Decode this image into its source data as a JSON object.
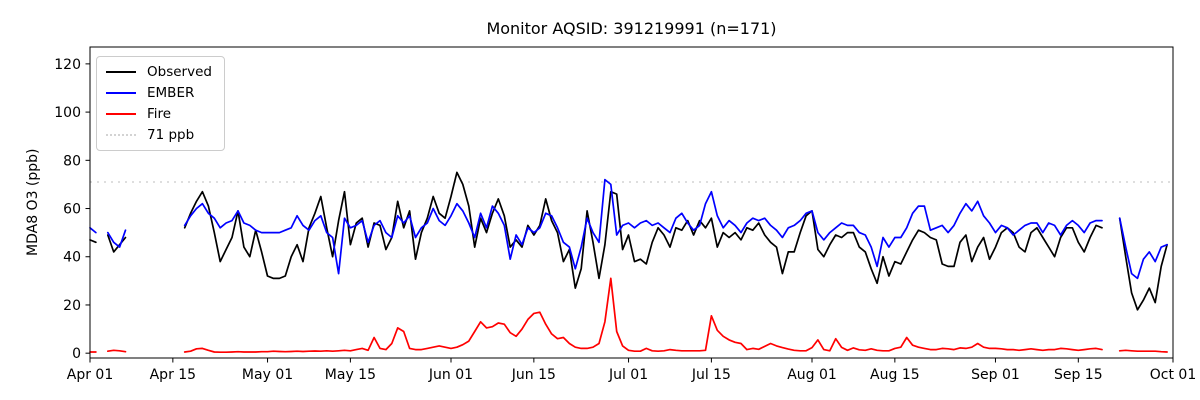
{
  "chart_data": {
    "type": "line",
    "title": "Monitor AQSID: 391219991 (n=171)",
    "xlabel": "",
    "ylabel": "MDA8 O3 (ppb)",
    "x_unit": "days since Apr 01",
    "xlim": [
      0,
      183
    ],
    "ylim": [
      -2,
      127
    ],
    "grid": false,
    "background": "#ffffff",
    "frame_color": "#000000",
    "threshold": {
      "value": 71,
      "label": "71 ppb",
      "color": "#d3d3d3",
      "style": "dotted"
    },
    "x_ticks": [
      {
        "day": 0,
        "label": "Apr 01"
      },
      {
        "day": 14,
        "label": "Apr 15"
      },
      {
        "day": 30,
        "label": "May 01"
      },
      {
        "day": 44,
        "label": "May 15"
      },
      {
        "day": 61,
        "label": "Jun 01"
      },
      {
        "day": 75,
        "label": "Jun 15"
      },
      {
        "day": 91,
        "label": "Jul 01"
      },
      {
        "day": 105,
        "label": "Jul 15"
      },
      {
        "day": 122,
        "label": "Aug 01"
      },
      {
        "day": 136,
        "label": "Aug 15"
      },
      {
        "day": 153,
        "label": "Sep 01"
      },
      {
        "day": 167,
        "label": "Sep 15"
      },
      {
        "day": 183,
        "label": "Oct 01"
      }
    ],
    "y_ticks": [
      0,
      20,
      40,
      60,
      80,
      100,
      120
    ],
    "legend": {
      "position": "upper-left",
      "entries": [
        {
          "label": "Observed",
          "color": "#000000",
          "style": "solid"
        },
        {
          "label": "EMBER",
          "color": "#0000ff",
          "style": "solid"
        },
        {
          "label": "Fire",
          "color": "#ff0000",
          "style": "solid"
        },
        {
          "label": "71 ppb",
          "color": "#d3d3d3",
          "style": "dotted"
        }
      ]
    },
    "series": [
      {
        "id": "observed",
        "name": "Observed",
        "color": "#000000",
        "values": [
          47,
          46,
          null,
          49,
          42,
          45,
          48,
          null,
          null,
          null,
          null,
          null,
          null,
          null,
          null,
          null,
          52,
          58,
          63,
          67,
          61,
          50,
          38,
          43,
          48,
          59,
          44,
          40,
          51,
          42,
          32,
          31,
          31,
          32,
          40,
          45,
          38,
          52,
          58,
          65,
          52,
          40,
          55,
          67,
          45,
          54,
          56,
          44,
          54,
          53,
          43,
          48,
          63,
          52,
          59,
          39,
          50,
          56,
          65,
          58,
          56,
          65,
          75,
          70,
          61,
          44,
          56,
          50,
          58,
          64,
          57,
          44,
          47,
          44,
          53,
          49,
          53,
          64,
          55,
          50,
          38,
          43,
          27,
          35,
          59,
          46,
          31,
          45,
          67,
          66,
          43,
          49,
          38,
          39,
          37,
          46,
          52,
          49,
          44,
          52,
          51,
          55,
          49,
          55,
          52,
          56,
          44,
          50,
          48,
          50,
          47,
          52,
          51,
          54,
          49,
          46,
          44,
          33,
          42,
          42,
          50,
          57,
          59,
          43,
          40,
          45,
          49,
          48,
          50,
          50,
          44,
          42,
          35,
          29,
          40,
          32,
          38,
          37,
          42,
          47,
          51,
          50,
          48,
          47,
          37,
          36,
          36,
          46,
          49,
          38,
          44,
          48,
          39,
          44,
          50,
          52,
          50,
          44,
          42,
          50,
          52,
          48,
          44,
          40,
          48,
          52,
          52,
          46,
          42,
          48,
          53,
          52,
          null,
          null,
          56,
          40,
          25,
          18,
          22,
          27,
          21,
          36,
          45
        ]
      },
      {
        "id": "ember",
        "name": "EMBER",
        "color": "#0000ff",
        "values": [
          52,
          50,
          null,
          50,
          46,
          44,
          51,
          null,
          null,
          null,
          null,
          null,
          null,
          null,
          null,
          null,
          53,
          57,
          60,
          62,
          58,
          56,
          52,
          54,
          55,
          59,
          54,
          53,
          51,
          50,
          50,
          50,
          50,
          51,
          52,
          57,
          53,
          51,
          55,
          57,
          50,
          48,
          33,
          56,
          52,
          53,
          55,
          46,
          53,
          55,
          50,
          48,
          57,
          54,
          57,
          48,
          52,
          54,
          60,
          55,
          53,
          57,
          62,
          59,
          54,
          48,
          58,
          52,
          61,
          58,
          53,
          39,
          49,
          45,
          52,
          50,
          52,
          58,
          57,
          52,
          46,
          44,
          35,
          44,
          56,
          50,
          46,
          72,
          70,
          49,
          53,
          54,
          52,
          54,
          55,
          53,
          54,
          52,
          50,
          56,
          58,
          54,
          51,
          53,
          62,
          67,
          57,
          52,
          55,
          53,
          50,
          54,
          56,
          55,
          56,
          53,
          51,
          48,
          52,
          53,
          55,
          58,
          59,
          50,
          47,
          50,
          52,
          54,
          53,
          53,
          50,
          49,
          44,
          36,
          48,
          44,
          48,
          48,
          52,
          58,
          61,
          61,
          51,
          52,
          53,
          50,
          53,
          58,
          62,
          59,
          63,
          57,
          54,
          50,
          53,
          52,
          49,
          51,
          53,
          54,
          54,
          50,
          54,
          53,
          49,
          53,
          55,
          53,
          50,
          54,
          55,
          55,
          null,
          null,
          56,
          44,
          33,
          31,
          39,
          42,
          38,
          44,
          45
        ]
      },
      {
        "id": "fire",
        "name": "Fire",
        "color": "#ff0000",
        "values": [
          0.5,
          0.5,
          null,
          0.8,
          1.2,
          1,
          0.6,
          null,
          null,
          null,
          null,
          null,
          null,
          null,
          null,
          null,
          0.5,
          0.8,
          1.8,
          2,
          1.2,
          0.5,
          0.4,
          0.4,
          0.5,
          0.6,
          0.5,
          0.5,
          0.5,
          0.6,
          0.6,
          0.8,
          0.7,
          0.6,
          0.7,
          0.8,
          0.7,
          0.8,
          0.9,
          0.8,
          1,
          0.8,
          1,
          1.2,
          1,
          1.5,
          2,
          1.2,
          6.5,
          2,
          1.5,
          4,
          10.5,
          9,
          2,
          1.5,
          1.5,
          2,
          2.5,
          3,
          2.5,
          2,
          2.5,
          3.5,
          5,
          9,
          13,
          10.5,
          11,
          12.5,
          12,
          8.5,
          7,
          10,
          14,
          16.5,
          17,
          12,
          8,
          6,
          6.5,
          4,
          2.5,
          2,
          2,
          2.5,
          4,
          13,
          31,
          9,
          3,
          1.2,
          0.8,
          0.8,
          2,
          1,
          0.8,
          1,
          1.5,
          1.2,
          1,
          1,
          1,
          1,
          1.2,
          15.5,
          9.5,
          7,
          5.5,
          4.5,
          4,
          1.5,
          2,
          1.6,
          2.8,
          4,
          3,
          2.3,
          1.7,
          1.2,
          1,
          1,
          2.3,
          5.5,
          1.5,
          1,
          6,
          2.4,
          1.2,
          2.2,
          1.4,
          1.2,
          1.8,
          1.2,
          1,
          1,
          2,
          2.5,
          6.5,
          3.3,
          2.5,
          2,
          1.5,
          1.5,
          2,
          1.8,
          1.5,
          2.2,
          2,
          2.5,
          4,
          2.5,
          2,
          2,
          1.8,
          1.5,
          1.5,
          1.2,
          1.5,
          1.8,
          1.5,
          1.2,
          1.5,
          1.5,
          2,
          1.8,
          1.5,
          1.2,
          1.5,
          1.8,
          2,
          1.5,
          null,
          null,
          1,
          1.2,
          1,
          0.8,
          0.8,
          0.8,
          0.8,
          0.6,
          0.5
        ]
      }
    ]
  }
}
